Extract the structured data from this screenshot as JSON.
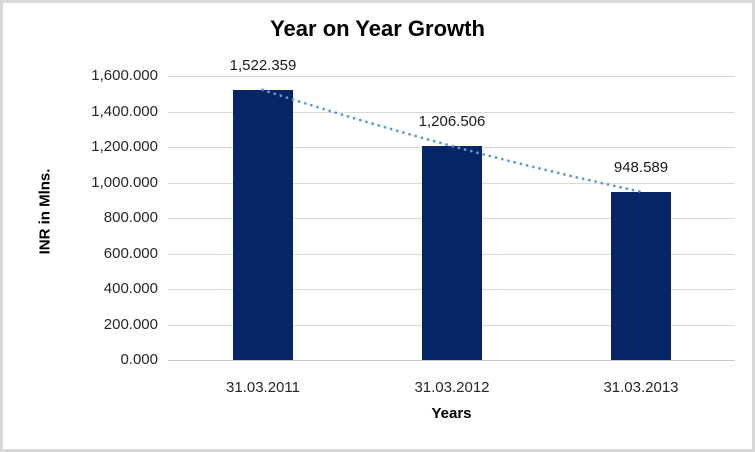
{
  "chart_data": {
    "type": "bar",
    "title": "Year on Year Growth",
    "xlabel": "Years",
    "ylabel": "INR in Mlns.",
    "categories": [
      "31.03.2011",
      "31.03.2012",
      "31.03.2013"
    ],
    "values": [
      1522.359,
      1206.506,
      948.589
    ],
    "data_labels": [
      "1,522.359",
      "1,206.506",
      "948.589"
    ],
    "ylim": [
      0,
      1600
    ],
    "ytick_step": 200,
    "yticks": [
      "0.000",
      "200.000",
      "400.000",
      "600.000",
      "800.000",
      "1,000.000",
      "1,200.000",
      "1,400.000",
      "1,600.000"
    ],
    "grid": true,
    "legend": false,
    "bar_color": "#062468",
    "trendline": {
      "style": "dotted",
      "color": "#5B9BD5"
    }
  }
}
